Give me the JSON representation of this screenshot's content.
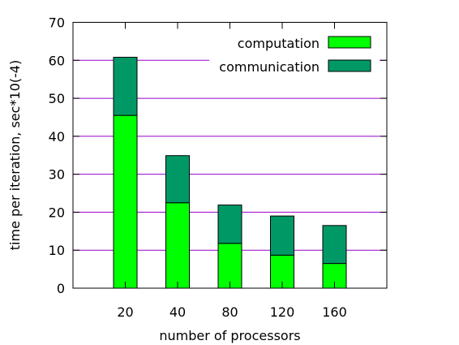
{
  "chart_data": {
    "type": "bar",
    "stacked": true,
    "categories": [
      "20",
      "40",
      "80",
      "120",
      "160"
    ],
    "series": [
      {
        "name": "computation",
        "values": [
          45.5,
          22.5,
          11.8,
          8.7,
          6.5
        ],
        "color": "#00ff00"
      },
      {
        "name": "communication",
        "values": [
          15.3,
          12.4,
          10.1,
          10.3,
          10.0
        ],
        "color": "#009966"
      }
    ],
    "xlabel": "number of processors",
    "ylabel": "time per iteration, sec*10(-4)",
    "ylim": [
      0,
      70
    ],
    "yticks": [
      0,
      10,
      20,
      30,
      40,
      50,
      60,
      70
    ],
    "grid": "horizontal",
    "grid_color": "#9900cc",
    "legend": "top-right"
  }
}
